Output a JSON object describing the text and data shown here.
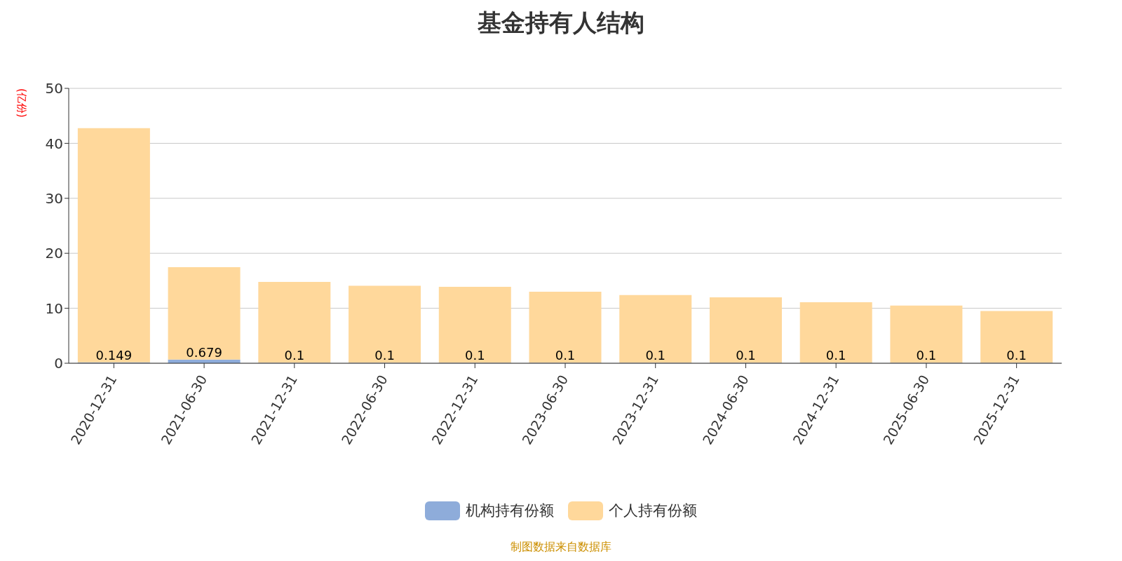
{
  "chart_data": {
    "type": "bar",
    "title": "基金持有人结构",
    "ylabel": "(亿份)",
    "categories": [
      "2020-12-31",
      "2021-06-30",
      "2021-12-31",
      "2022-06-30",
      "2022-12-31",
      "2023-06-30",
      "2023-12-31",
      "2024-06-30",
      "2024-12-31",
      "2025-06-30",
      "2025-12-31"
    ],
    "series": [
      {
        "name": "机构持有份额",
        "color": "#8eacda",
        "values": [
          0.149,
          0.679,
          0.1,
          0.1,
          0.1,
          0.1,
          0.1,
          0.1,
          0.1,
          0.1,
          0.1
        ],
        "value_labels": [
          "0.149",
          "0.679",
          "0.1",
          "0.1",
          "0.1",
          "0.1",
          "0.1",
          "0.1",
          "0.1",
          "0.1",
          "0.1"
        ]
      },
      {
        "name": "个人持有份额",
        "color": "#ffd89b",
        "values": [
          42.6,
          16.8,
          14.7,
          14.0,
          13.8,
          12.9,
          12.3,
          11.9,
          11.0,
          10.4,
          9.4
        ]
      }
    ],
    "stacked": true,
    "ylim": [
      0,
      50
    ],
    "yticks": [
      0,
      10,
      20,
      30,
      40,
      50
    ],
    "grid": "y",
    "legend": "bottom",
    "annotations": [
      "制图数据来自数据库"
    ]
  }
}
